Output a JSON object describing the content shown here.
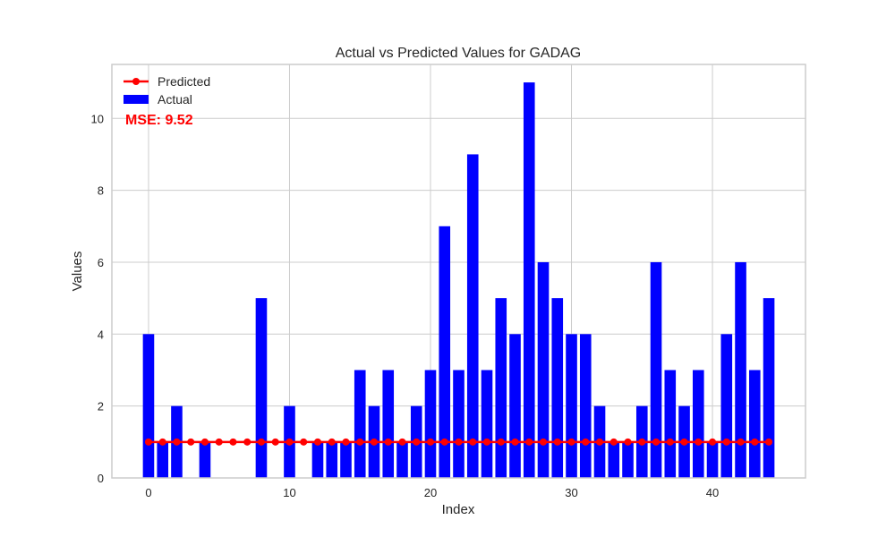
{
  "chart_data": {
    "type": "bar",
    "title": "Actual vs Predicted Values for GADAG",
    "xlabel": "Index",
    "ylabel": "Values",
    "xlim": [
      -2.6,
      46.6
    ],
    "ylim": [
      0,
      11.5
    ],
    "xticks": [
      0,
      10,
      20,
      30,
      40
    ],
    "yticks": [
      0,
      2,
      4,
      6,
      8,
      10
    ],
    "grid": true,
    "legend_position": "top-left",
    "annotation": "MSE: 9.52",
    "annotation_color": "#ff0000",
    "x": [
      0,
      1,
      2,
      3,
      4,
      5,
      6,
      7,
      8,
      9,
      10,
      11,
      12,
      13,
      14,
      15,
      16,
      17,
      18,
      19,
      20,
      21,
      22,
      23,
      24,
      25,
      26,
      27,
      28,
      29,
      30,
      31,
      32,
      33,
      34,
      35,
      36,
      37,
      38,
      39,
      40,
      41,
      42,
      43,
      44
    ],
    "series": [
      {
        "name": "Actual",
        "kind": "bar",
        "color": "#0000ff",
        "values": [
          4,
          1,
          2,
          0,
          1,
          0,
          0,
          0,
          5,
          0,
          2,
          0,
          1,
          1,
          1,
          3,
          2,
          3,
          1,
          2,
          3,
          7,
          3,
          9,
          3,
          5,
          4,
          11,
          6,
          5,
          4,
          4,
          2,
          1,
          1,
          2,
          6,
          3,
          2,
          3,
          1,
          4,
          6,
          3,
          5
        ]
      },
      {
        "name": "Predicted",
        "kind": "line",
        "color": "#ff0000",
        "values": [
          1,
          1,
          1,
          1,
          1,
          1,
          1,
          1,
          1,
          1,
          1,
          1,
          1,
          1,
          1,
          1,
          1,
          1,
          1,
          1,
          1,
          1,
          1,
          1,
          1,
          1,
          1,
          1,
          1,
          1,
          1,
          1,
          1,
          1,
          1,
          1,
          1,
          1,
          1,
          1,
          1,
          1,
          1,
          1,
          1
        ]
      }
    ]
  }
}
